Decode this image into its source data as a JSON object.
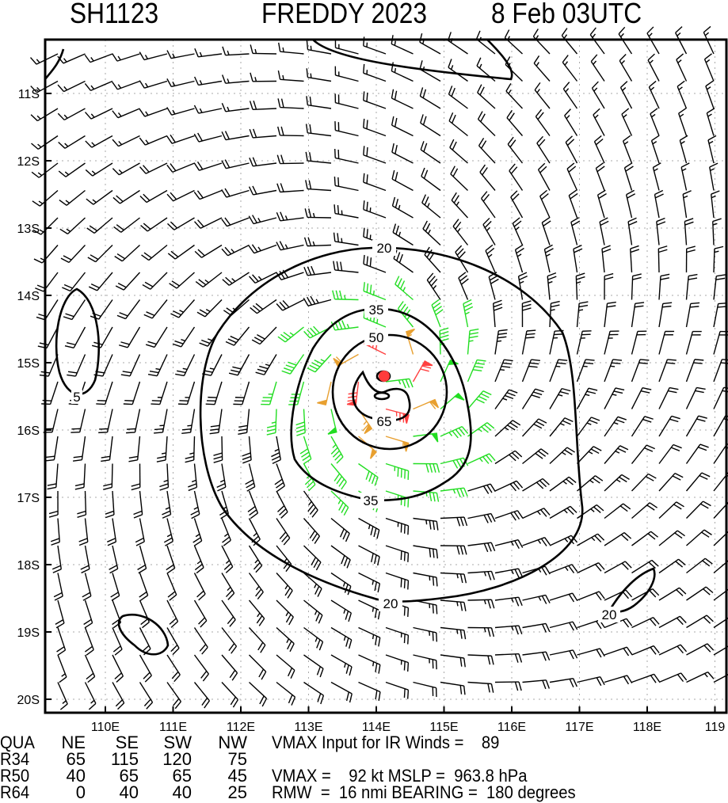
{
  "title": {
    "storm_id": "SH1123",
    "storm_name": "FREDDY 2023",
    "datetime": "8 Feb 03UTC"
  },
  "chart_data": {
    "type": "wind-barb-map",
    "lat_ticks": [
      "11S",
      "12S",
      "13S",
      "14S",
      "15S",
      "16S",
      "17S",
      "18S",
      "19S",
      "20S"
    ],
    "lon_ticks": [
      "110E",
      "111E",
      "112E",
      "113E",
      "114E",
      "115E",
      "116E",
      "117E",
      "118E",
      "119"
    ],
    "lon_range": [
      109.1,
      119.2
    ],
    "lat_range": [
      -20.2,
      -10.2
    ],
    "grid": true,
    "center": {
      "lon": 114.1,
      "lat": -15.2,
      "color": "#ff3b3b"
    },
    "wind_field": {
      "vmax_kt": 92,
      "rmw_nmi": 16,
      "rotation": "clockwise",
      "background_kt": 12
    },
    "speed_colors": [
      {
        "min": 0,
        "max": 34,
        "color": "#000000"
      },
      {
        "min": 34,
        "max": 50,
        "color": "#22dd22"
      },
      {
        "min": 50,
        "max": 64,
        "color": "#e8a030"
      },
      {
        "min": 64,
        "max": 200,
        "color": "#ff4040"
      }
    ],
    "contour_labels": [
      "20",
      "35",
      "50",
      "65",
      "5",
      "20"
    ]
  },
  "table": {
    "header": {
      "label": "QUA",
      "cols": [
        "NE",
        "SE",
        "SW",
        "NW"
      ]
    },
    "rows": [
      {
        "label": "R34",
        "values": [
          "65",
          "115",
          "120",
          "75"
        ]
      },
      {
        "label": "R50",
        "values": [
          "40",
          "65",
          "65",
          "45"
        ]
      },
      {
        "label": "R64",
        "values": [
          "0",
          "40",
          "40",
          "25"
        ]
      }
    ]
  },
  "info": {
    "vmax_input": "VMAX Input for IR Winds =    89",
    "vmax_mslp": "VMAX =    92 kt MSLP =  963.8 hPa",
    "rmw_bearing": "RMW  =  16 nmi BEARING =  180 degrees"
  }
}
